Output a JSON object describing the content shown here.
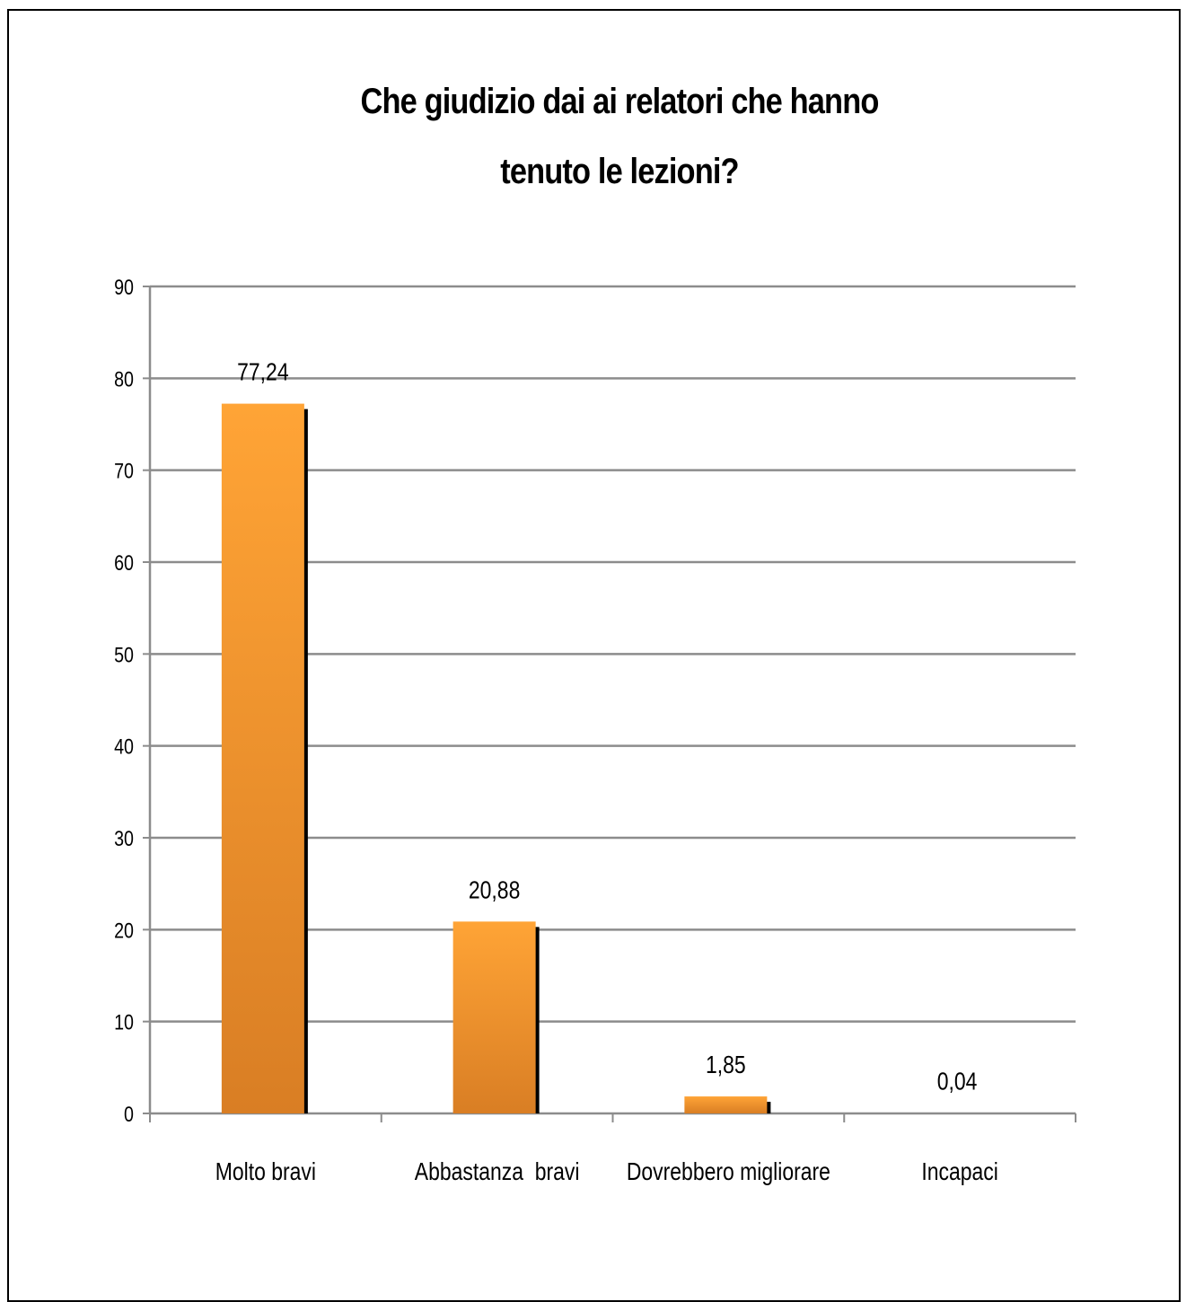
{
  "chart_data": {
    "type": "bar",
    "title_lines": [
      "Che giudizio dai ai relatori che hanno",
      "tenuto le lezioni?"
    ],
    "categories": [
      "Molto bravi",
      "Abbastanza  bravi",
      "Dovrebbero migliorare",
      "Incapaci"
    ],
    "values": [
      77.24,
      20.88,
      1.85,
      0.04
    ],
    "value_labels": [
      "77,24",
      "20,88",
      "1,85",
      "0,04"
    ],
    "ylim": [
      0,
      90
    ],
    "yticks": [
      0,
      10,
      20,
      30,
      40,
      50,
      60,
      70,
      80,
      90
    ],
    "grid": true,
    "legend": "none",
    "bar_color_top": "#FFA436",
    "bar_color_bottom": "#D97E24",
    "bar_shadow_color": "#000000",
    "grid_color": "#8C8C8C"
  }
}
